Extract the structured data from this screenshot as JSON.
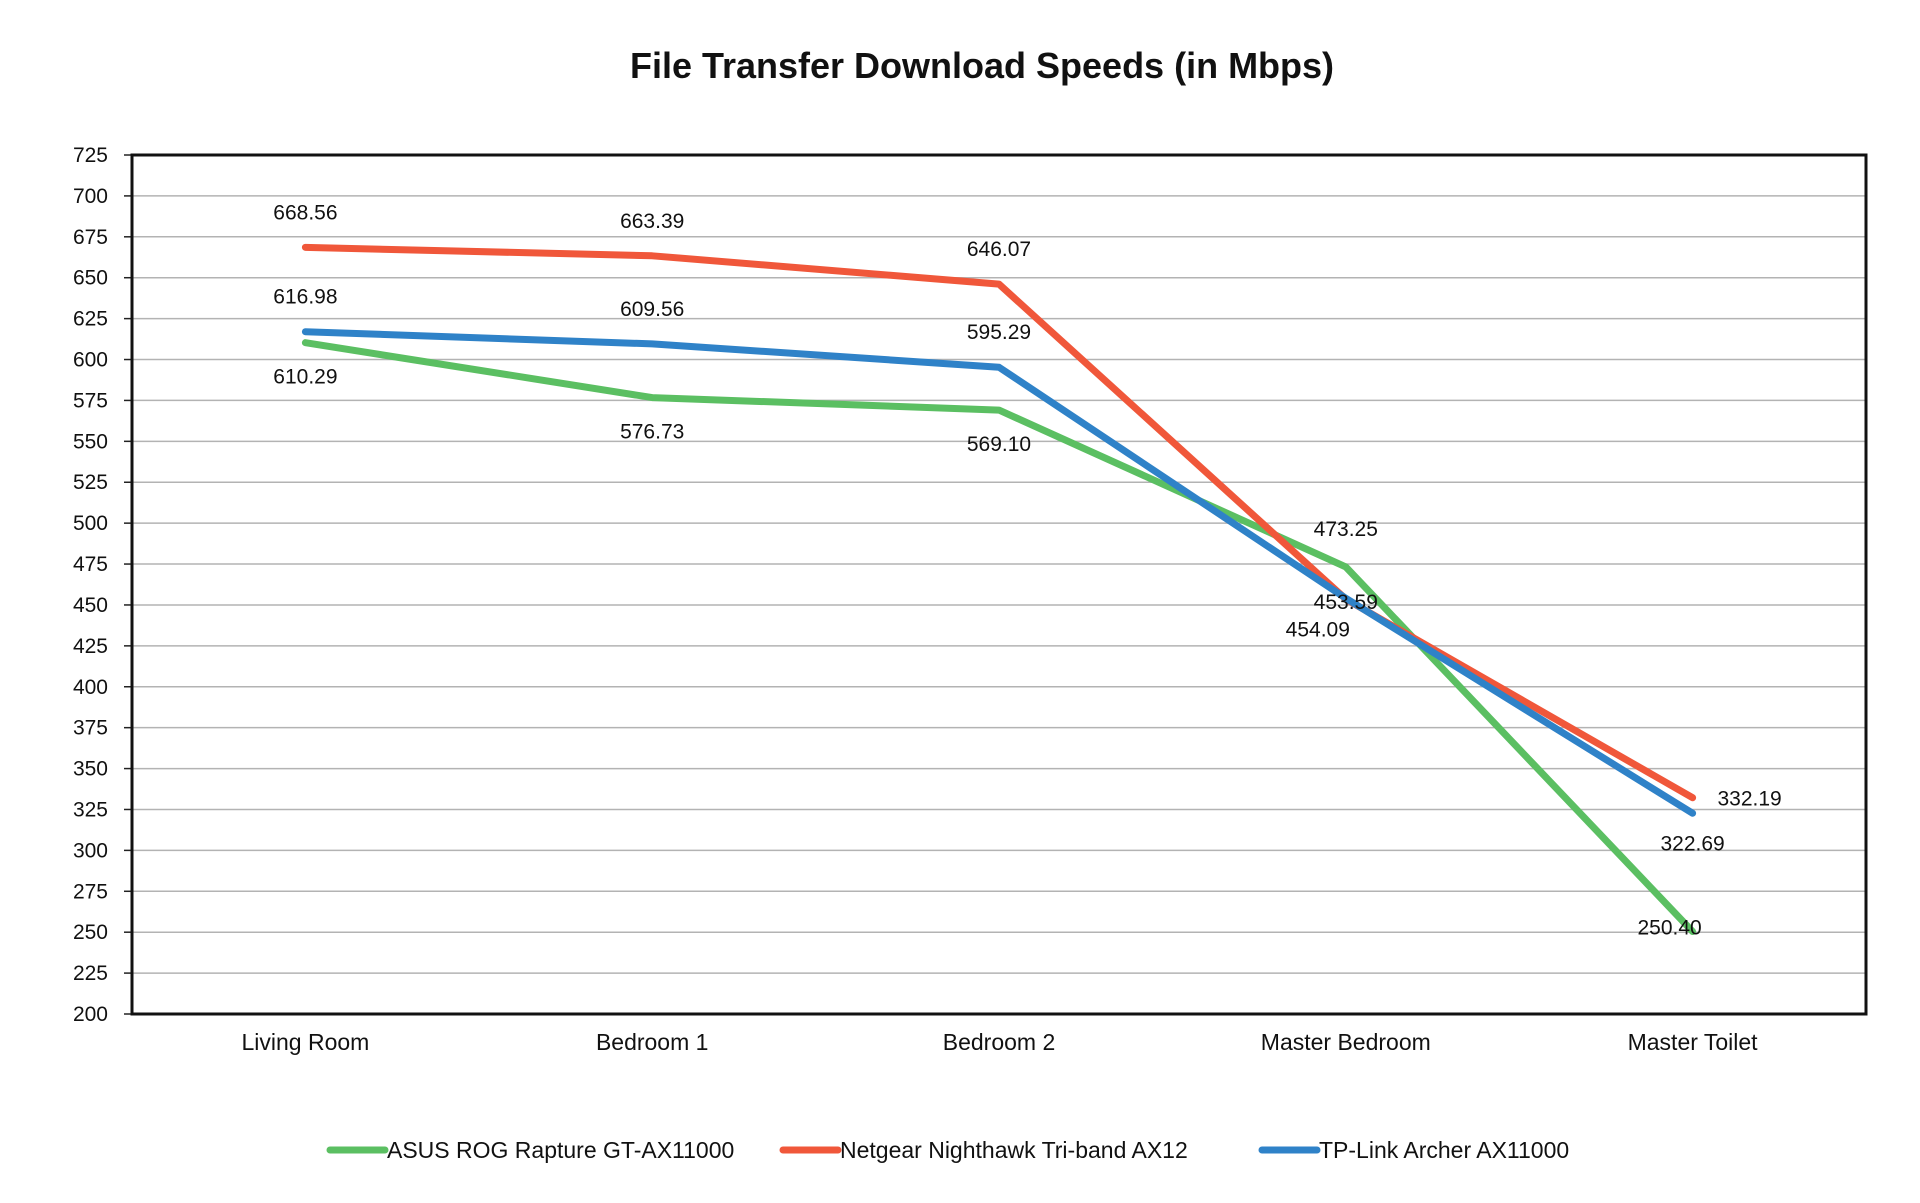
{
  "chart_data": {
    "type": "line",
    "title": "File Transfer Download Speeds (in Mbps)",
    "xlabel": "",
    "ylabel": "",
    "categories": [
      "Living Room",
      "Bedroom 1",
      "Bedroom 2",
      "Master Bedroom",
      "Master Toilet"
    ],
    "ylim": [
      200,
      725
    ],
    "ytick_step": 25,
    "grid": true,
    "legend_position": "bottom",
    "series": [
      {
        "name": "ASUS ROG Rapture GT-AX11000",
        "color": "#5bbf62",
        "values": [
          610.29,
          576.73,
          569.1,
          473.25,
          250.4
        ],
        "labels": [
          "610.29",
          "576.73",
          "569.10",
          "473.25",
          "250.40"
        ]
      },
      {
        "name": "Netgear Nighthawk Tri-band AX12",
        "color": "#f0573a",
        "values": [
          668.56,
          663.39,
          646.07,
          453.59,
          332.19
        ],
        "labels": [
          "668.56",
          "663.39",
          "646.07",
          "453.59",
          "332.19"
        ]
      },
      {
        "name": "TP-Link Archer AX11000",
        "color": "#2f82c8",
        "values": [
          616.98,
          609.56,
          595.29,
          454.09,
          322.69
        ],
        "labels": [
          "616.98",
          "609.56",
          "595.29",
          "454.09",
          "322.69"
        ]
      }
    ]
  }
}
